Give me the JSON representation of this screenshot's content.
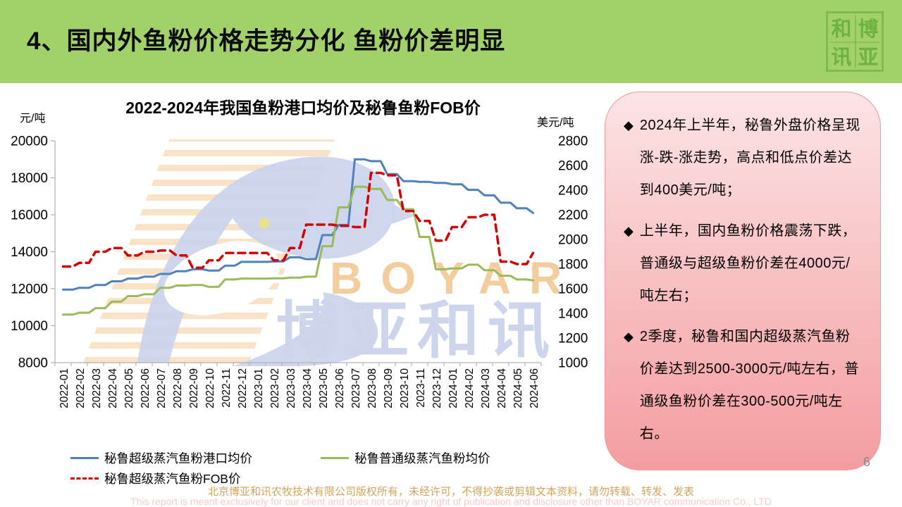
{
  "header": {
    "title": "4、国内外鱼粉价格走势分化 鱼粉价差明显",
    "seal": {
      "tl": "和",
      "tr": "博",
      "bl": "讯",
      "br": "亚"
    }
  },
  "watermark": {
    "en": "BOYAR",
    "cn": "博亚和讯"
  },
  "chart_data": {
    "type": "line",
    "title": "2022-2024年我国鱼粉港口均价及秘鲁鱼粉FOB价",
    "categories": [
      "2022-01",
      "2022-02",
      "2022-03",
      "2022-04",
      "2022-05",
      "2022-06",
      "2022-07",
      "2022-08",
      "2022-09",
      "2022-10",
      "2022-11",
      "2022-12",
      "2023-01",
      "2023-02",
      "2023-03",
      "2023-04",
      "2023-05",
      "2023-06",
      "2023-07",
      "2023-08",
      "2023-09",
      "2023-10",
      "2023-11",
      "2023-12",
      "2024-01",
      "2024-02",
      "2024-03",
      "2024-04",
      "2024-05",
      "2024-06"
    ],
    "left_axis": {
      "label": "元/吨",
      "min": 8000,
      "max": 20000,
      "step": 2000
    },
    "right_axis": {
      "label": "美元/吨",
      "min": 1000,
      "max": 2800,
      "step": 200
    },
    "grid": false,
    "legend_position": "bottom",
    "series": [
      {
        "name": "秘鲁超级蒸汽鱼粉港口均价",
        "axis": "left",
        "color": "#4f81bd",
        "style": "solid",
        "values": [
          11950,
          12050,
          12200,
          12400,
          12550,
          12650,
          12800,
          12950,
          13050,
          12980,
          13250,
          13450,
          13450,
          13480,
          13700,
          13600,
          14900,
          15450,
          19000,
          18900,
          18200,
          17820,
          17780,
          17720,
          17650,
          17350,
          17050,
          16650,
          16350,
          16100
        ]
      },
      {
        "name": "秘鲁普通级蒸汽鱼粉均价",
        "axis": "left",
        "color": "#9bbb59",
        "style": "solid",
        "values": [
          10600,
          10700,
          10950,
          11300,
          11600,
          11700,
          12050,
          12170,
          12200,
          12100,
          12500,
          12550,
          12550,
          12560,
          12600,
          12650,
          14300,
          16400,
          17520,
          17400,
          16800,
          16300,
          14800,
          13050,
          13100,
          13300,
          13000,
          12700,
          12500,
          12450
        ]
      },
      {
        "name": "秘鲁超级蒸汽鱼粉FOB价",
        "axis": "right",
        "color": "#d40000",
        "style": "dashed",
        "values": [
          1780,
          1810,
          1900,
          1930,
          1870,
          1900,
          1910,
          1870,
          1770,
          1830,
          1890,
          1890,
          1890,
          1830,
          1930,
          2120,
          2120,
          2110,
          2100,
          2540,
          2520,
          2230,
          2150,
          1990,
          2100,
          2180,
          2200,
          1820,
          1800,
          1890
        ]
      }
    ]
  },
  "notes": {
    "bullet": "◆",
    "items": [
      {
        "text": "2024年上半年，秘鲁外盘价格呈现涨-跌-涨走势，高点和低点价差达到400美元/吨；"
      },
      {
        "text": "上半年，国内鱼粉价格震荡下跌，普通级与超级鱼粉价差在4000元/吨左右；"
      },
      {
        "text": "2季度，秘鲁和国内超级蒸汽鱼粉价差达到2500-3000元/吨左右，普通级鱼粉价差在300-500元/吨左右。"
      }
    ]
  },
  "footer": {
    "line_cn": "北京博亚和讯农牧技术有限公司版权所有，未经许可，不得抄袭或剪辑文本资料，请勿转载、转发、发表",
    "line_en": "This report is meant exclusively for our client and does not carry any right of publication and disclosure other than BOYAR communication Co., LTD",
    "page": "6"
  },
  "colors": {
    "header_green": "#a2d16a",
    "box_top": "#fce4e5",
    "box_bottom": "#f49da0",
    "box_border": "#ee9a9c",
    "footer_cn": "#d2a45a",
    "footer_en": "#f5cbc7",
    "watermark_orange": "#f2c894",
    "watermark_lavender": "#ccd5ec",
    "axis_gray": "#b5b5b5"
  }
}
